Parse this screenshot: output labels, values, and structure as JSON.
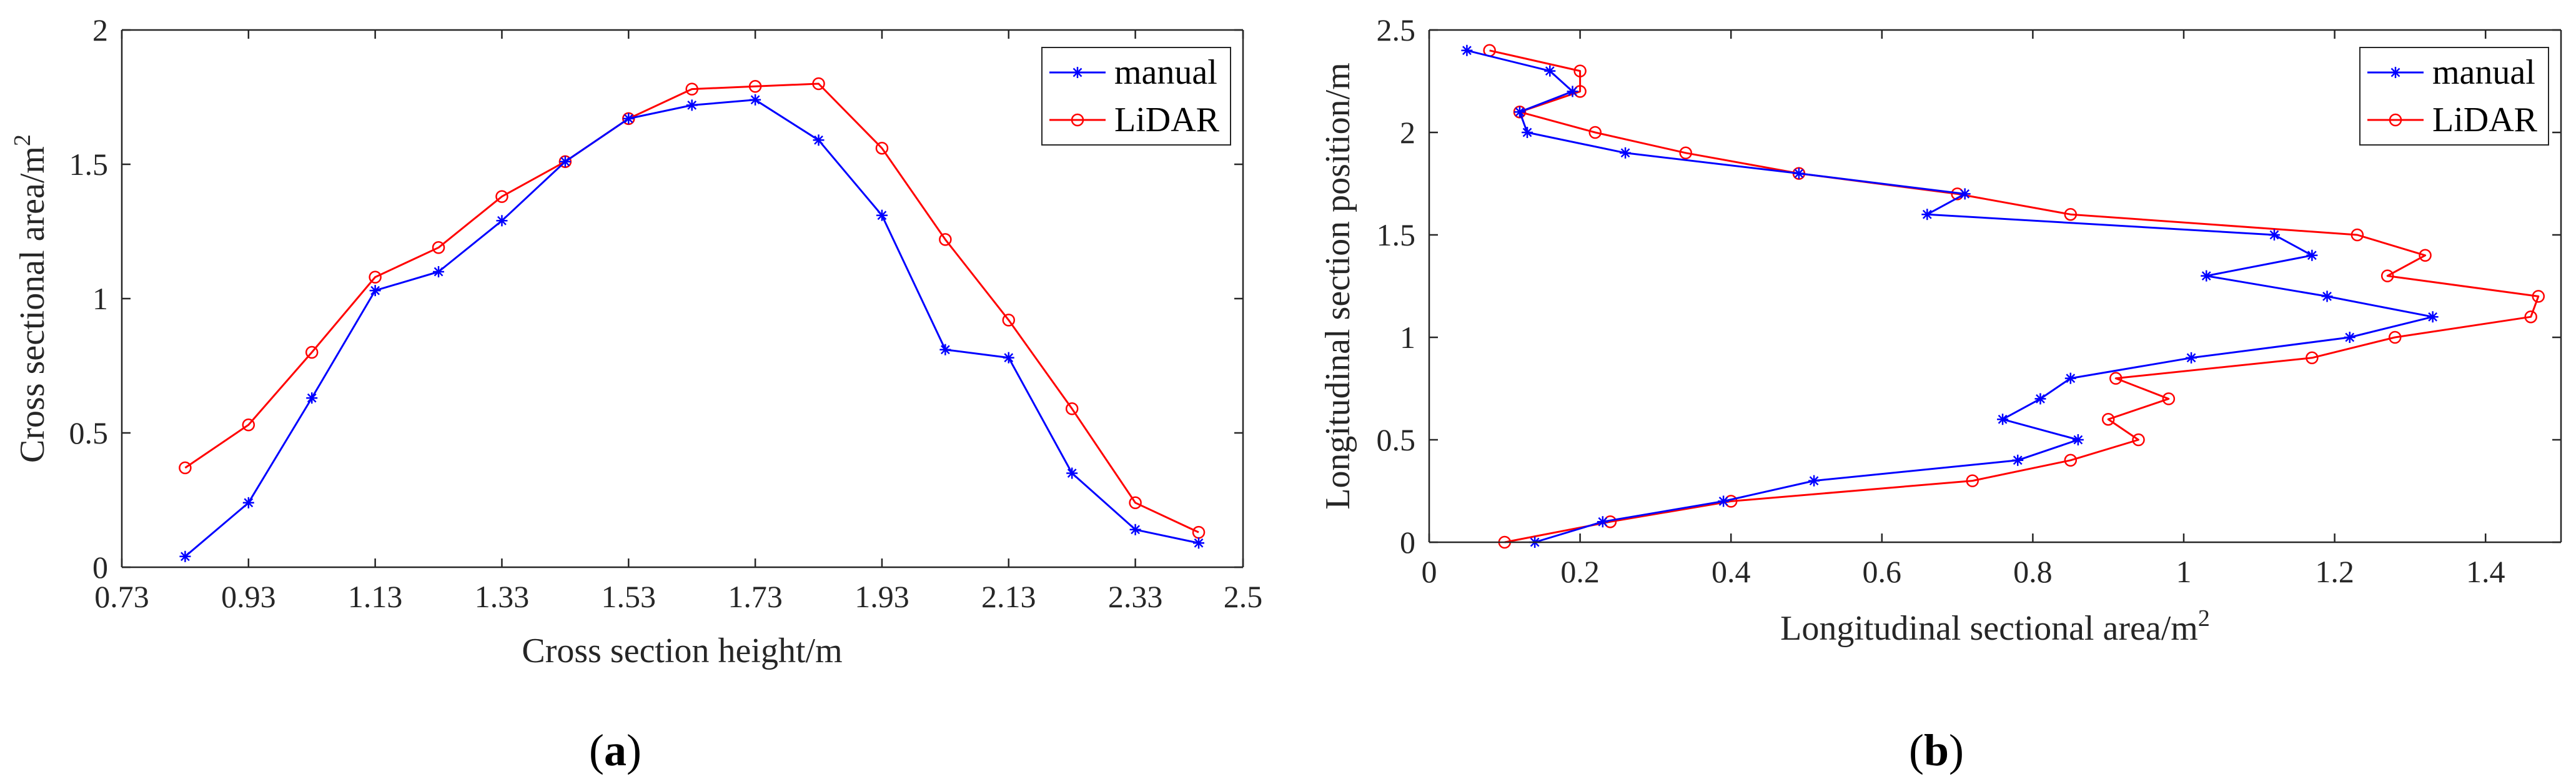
{
  "colors": {
    "manual": "#0000ff",
    "lidar": "#ff0000",
    "axis": "#262626"
  },
  "chart_data": [
    {
      "type": "line",
      "panel_label": "a",
      "title": "",
      "xlabel": "Cross section height/m",
      "ylabel": "Cross sectional area/m",
      "ylabel_sup": "2",
      "xlim": [
        0.73,
        2.5
      ],
      "ylim": [
        0,
        2
      ],
      "xticks": [
        0.73,
        0.93,
        1.13,
        1.33,
        1.53,
        1.73,
        1.93,
        2.13,
        2.33,
        2.5
      ],
      "xtick_labels": [
        "0.73",
        "0.93",
        "1.13",
        "1.33",
        "1.53",
        "1.73",
        "1.93",
        "2.13",
        "2.33",
        "2.5"
      ],
      "yticks": [
        0,
        0.5,
        1,
        1.5,
        2
      ],
      "ytick_labels": [
        "0",
        "0.5",
        "1",
        "1.5",
        "2"
      ],
      "legend_position": "top-right",
      "series": [
        {
          "name": "manual",
          "marker": "asterisk",
          "x": [
            0.83,
            0.93,
            1.03,
            1.13,
            1.23,
            1.33,
            1.43,
            1.53,
            1.63,
            1.73,
            1.83,
            1.93,
            2.03,
            2.13,
            2.23,
            2.33,
            2.43
          ],
          "y": [
            0.04,
            0.24,
            0.63,
            1.03,
            1.1,
            1.29,
            1.51,
            1.67,
            1.72,
            1.74,
            1.59,
            1.31,
            0.81,
            0.78,
            0.35,
            0.14,
            0.09
          ]
        },
        {
          "name": "LiDAR",
          "marker": "circle",
          "x": [
            0.83,
            0.93,
            1.03,
            1.13,
            1.23,
            1.33,
            1.43,
            1.53,
            1.63,
            1.73,
            1.83,
            1.93,
            2.03,
            2.13,
            2.23,
            2.33,
            2.43
          ],
          "y": [
            0.37,
            0.53,
            0.8,
            1.08,
            1.19,
            1.38,
            1.51,
            1.67,
            1.78,
            1.79,
            1.8,
            1.56,
            1.22,
            0.92,
            0.59,
            0.24,
            0.13
          ]
        }
      ]
    },
    {
      "type": "line",
      "panel_label": "b",
      "title": "",
      "xlabel": "Longitudinal sectional area/m",
      "xlabel_sup": "2",
      "ylabel": "Longitudinal section position/m",
      "xlim": [
        0,
        1.5
      ],
      "ylim": [
        0,
        2.5
      ],
      "xticks": [
        0,
        0.2,
        0.4,
        0.6,
        0.8,
        1,
        1.2,
        1.4
      ],
      "xtick_labels": [
        "0",
        "0.2",
        "0.4",
        "0.6",
        "0.8",
        "1",
        "1.2",
        "1.4"
      ],
      "yticks": [
        0,
        0.5,
        1,
        1.5,
        2,
        2.5
      ],
      "ytick_labels": [
        "0",
        "0.5",
        "1",
        "1.5",
        "2",
        "2.5"
      ],
      "legend_position": "top-right",
      "series": [
        {
          "name": "manual",
          "marker": "asterisk",
          "x": [
            0.14,
            0.23,
            0.39,
            0.51,
            0.78,
            0.86,
            0.76,
            0.81,
            0.85,
            1.01,
            1.22,
            1.33,
            1.19,
            1.03,
            1.17,
            1.12,
            0.66,
            0.71,
            0.49,
            0.26,
            0.13,
            0.12,
            0.19,
            0.16,
            0.05
          ],
          "y": [
            0.0,
            0.1,
            0.2,
            0.3,
            0.4,
            0.5,
            0.6,
            0.7,
            0.8,
            0.9,
            1.0,
            1.1,
            1.2,
            1.3,
            1.4,
            1.5,
            1.6,
            1.7,
            1.8,
            1.9,
            2.0,
            2.1,
            2.2,
            2.3,
            2.4
          ]
        },
        {
          "name": "LiDAR",
          "marker": "circle",
          "x": [
            0.1,
            0.24,
            0.4,
            0.72,
            0.85,
            0.94,
            0.9,
            0.98,
            0.91,
            1.17,
            1.28,
            1.46,
            1.47,
            1.27,
            1.32,
            1.23,
            0.85,
            0.7,
            0.49,
            0.34,
            0.22,
            0.12,
            0.2,
            0.2,
            0.08
          ],
          "y": [
            0.0,
            0.1,
            0.2,
            0.3,
            0.4,
            0.5,
            0.6,
            0.7,
            0.8,
            0.9,
            1.0,
            1.1,
            1.2,
            1.3,
            1.4,
            1.5,
            1.6,
            1.7,
            1.8,
            1.9,
            2.0,
            2.1,
            2.2,
            2.3,
            2.4
          ]
        }
      ]
    }
  ]
}
